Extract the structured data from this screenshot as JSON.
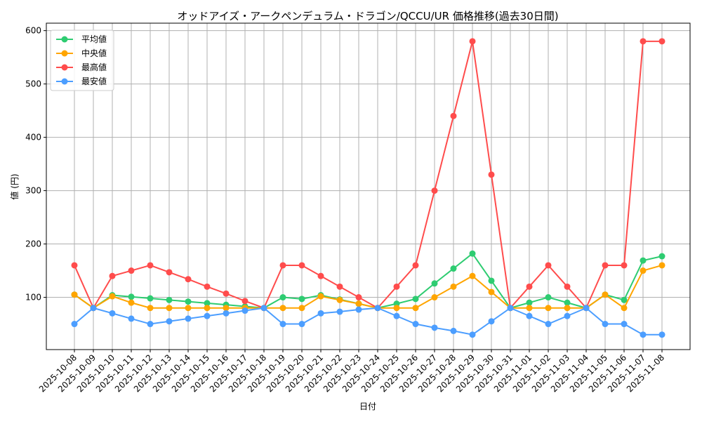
{
  "chart_data": {
    "type": "line",
    "title": "オッドアイズ・アークペンデュラム・ドラゴン/QCCU/UR 価格推移(過去30日間)",
    "xlabel": "日付",
    "ylabel": "値 (円)",
    "ylim": [
      2,
      614
    ],
    "yticks": [
      100,
      200,
      300,
      400,
      500,
      600
    ],
    "grid": true,
    "legend_position": "top-left",
    "categories": [
      "2025-10-08",
      "2025-10-09",
      "2025-10-10",
      "2025-10-11",
      "2025-10-12",
      "2025-10-13",
      "2025-10-14",
      "2025-10-15",
      "2025-10-16",
      "2025-10-17",
      "2025-10-18",
      "2025-10-19",
      "2025-10-20",
      "2025-10-21",
      "2025-10-22",
      "2025-10-23",
      "2025-10-24",
      "2025-10-25",
      "2025-10-26",
      "2025-10-27",
      "2025-10-28",
      "2025-10-29",
      "2025-10-30",
      "2025-10-31",
      "2025-11-01",
      "2025-11-02",
      "2025-11-03",
      "2025-11-04",
      "2025-11-05",
      "2025-11-06",
      "2025-11-07",
      "2025-11-08"
    ],
    "series": [
      {
        "name": "平均値",
        "color": "#2ecc71",
        "values": [
          105,
          80,
          104,
          101,
          98,
          95,
          92,
          89,
          86,
          83,
          80,
          100,
          97,
          104,
          96,
          88,
          80,
          88,
          97,
          126,
          154,
          182,
          131,
          80,
          90,
          100,
          90,
          80,
          105,
          95,
          169,
          177
        ]
      },
      {
        "name": "中央値",
        "color": "#ffa500",
        "values": [
          105,
          80,
          102,
          90,
          80,
          80,
          80,
          80,
          80,
          80,
          80,
          80,
          80,
          102,
          95,
          88,
          80,
          80,
          80,
          100,
          120,
          140,
          110,
          80,
          80,
          80,
          80,
          80,
          105,
          80,
          150,
          160
        ]
      },
      {
        "name": "最高値",
        "color": "#ff4c4c",
        "values": [
          160,
          80,
          140,
          150,
          160,
          147,
          134,
          120,
          107,
          93,
          80,
          160,
          160,
          140,
          120,
          100,
          80,
          120,
          160,
          300,
          440,
          580,
          330,
          80,
          120,
          160,
          120,
          80,
          160,
          160,
          580,
          580
        ]
      },
      {
        "name": "最安値",
        "color": "#4c9eff",
        "values": [
          50,
          80,
          70,
          60,
          50,
          55,
          60,
          65,
          70,
          75,
          80,
          50,
          50,
          70,
          73,
          77,
          80,
          65,
          50,
          43,
          37,
          30,
          55,
          80,
          65,
          50,
          65,
          80,
          50,
          50,
          30,
          30
        ]
      }
    ]
  }
}
